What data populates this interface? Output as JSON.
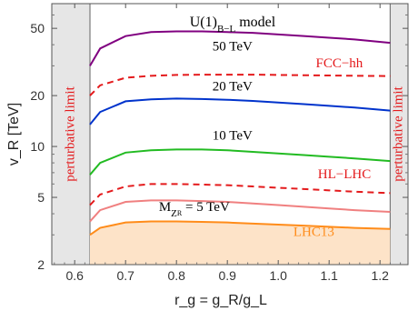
{
  "chart_data": {
    "type": "line",
    "title": "U(1)B−L model",
    "title_main": "U(1)",
    "title_sub": "B−L",
    "title_rest": " model",
    "xlabel": "r_g = g_R/g_L",
    "ylabel": "v_R [TeV]",
    "xlim": [
      0.555,
      1.255
    ],
    "ylim": [
      2,
      70
    ],
    "yscale": "log",
    "xticks": [
      "0.6",
      "0.7",
      "0.8",
      "0.9",
      "1.0",
      "1.1",
      "1.2"
    ],
    "yticks": [
      "2",
      "5",
      "10",
      "20",
      "50"
    ],
    "excluded_regions": [
      {
        "from": 0.555,
        "to": 0.63,
        "label": "perturbative limit"
      },
      {
        "from": 1.22,
        "to": 1.255,
        "label": "perturbative limit"
      }
    ],
    "series": [
      {
        "name": "50 TeV",
        "color": "#800080",
        "style": "solid",
        "x": [
          0.63,
          0.65,
          0.7,
          0.75,
          0.8,
          0.85,
          0.9,
          0.95,
          1.0,
          1.05,
          1.1,
          1.15,
          1.22
        ],
        "y": [
          30,
          38,
          45,
          47.5,
          48,
          48,
          47.5,
          47,
          46,
          45,
          44,
          43,
          41
        ]
      },
      {
        "name": "FCC−hh",
        "color": "#e41a1c",
        "style": "dashed",
        "x": [
          0.63,
          0.65,
          0.7,
          0.75,
          0.8,
          0.85,
          0.9,
          0.95,
          1.0,
          1.05,
          1.1,
          1.15,
          1.22
        ],
        "y": [
          20,
          23,
          25.5,
          26.2,
          26.5,
          26.6,
          26.6,
          26.6,
          26.5,
          26.4,
          26.3,
          26.2,
          26.1
        ]
      },
      {
        "name": "20 TeV",
        "color": "#0033cc",
        "style": "solid",
        "x": [
          0.63,
          0.65,
          0.7,
          0.75,
          0.8,
          0.85,
          0.9,
          0.95,
          1.0,
          1.05,
          1.1,
          1.15,
          1.22
        ],
        "y": [
          13.5,
          16,
          18.5,
          19,
          19.2,
          19.1,
          18.9,
          18.6,
          18.2,
          17.8,
          17.4,
          17,
          16.3
        ]
      },
      {
        "name": "10 TeV",
        "color": "#22bb22",
        "style": "solid",
        "x": [
          0.63,
          0.65,
          0.7,
          0.75,
          0.8,
          0.85,
          0.9,
          0.95,
          1.0,
          1.05,
          1.1,
          1.15,
          1.22
        ],
        "y": [
          6.8,
          8,
          9.2,
          9.5,
          9.6,
          9.6,
          9.5,
          9.3,
          9.1,
          8.9,
          8.7,
          8.5,
          8.2
        ]
      },
      {
        "name": "HL−LHC",
        "color": "#e41a1c",
        "style": "dashed",
        "x": [
          0.63,
          0.65,
          0.7,
          0.75,
          0.8,
          0.85,
          0.9,
          0.95,
          1.0,
          1.05,
          1.1,
          1.15,
          1.22
        ],
        "y": [
          4.5,
          5.2,
          5.8,
          6.0,
          6.0,
          5.95,
          5.9,
          5.8,
          5.7,
          5.6,
          5.5,
          5.4,
          5.3
        ]
      },
      {
        "name": "5 TeV",
        "color": "#f08080",
        "style": "solid",
        "x": [
          0.63,
          0.65,
          0.7,
          0.75,
          0.8,
          0.85,
          0.9,
          0.95,
          1.0,
          1.05,
          1.1,
          1.15,
          1.22
        ],
        "y": [
          3.6,
          4.2,
          4.7,
          4.8,
          4.8,
          4.75,
          4.7,
          4.6,
          4.5,
          4.4,
          4.3,
          4.2,
          4.1
        ]
      },
      {
        "name": "LHC13",
        "color": "#ff8c1a",
        "style": "solid",
        "fill": "#fde3c8",
        "x": [
          0.63,
          0.65,
          0.7,
          0.75,
          0.8,
          0.85,
          0.9,
          0.95,
          1.0,
          1.05,
          1.1,
          1.15,
          1.22
        ],
        "y": [
          3.0,
          3.3,
          3.55,
          3.6,
          3.6,
          3.58,
          3.55,
          3.5,
          3.45,
          3.4,
          3.35,
          3.3,
          3.25
        ]
      }
    ],
    "annotations": [
      {
        "id": "ann-50",
        "text": "50 TeV",
        "x": 0.91,
        "y": 37,
        "color": "black"
      },
      {
        "id": "ann-fcc",
        "text": "FCC−hh",
        "x": 1.12,
        "y": 29.5,
        "color": "red"
      },
      {
        "id": "ann-20",
        "text": "20 TeV",
        "x": 0.91,
        "y": 21.5,
        "color": "black"
      },
      {
        "id": "ann-10",
        "text": "10 TeV",
        "x": 0.91,
        "y": 11,
        "color": "black"
      },
      {
        "id": "ann-hl",
        "text": "HL−LHC",
        "x": 1.13,
        "y": 6.5,
        "color": "red"
      },
      {
        "id": "ann-lhc13",
        "text": "LHC13",
        "x": 1.07,
        "y": 2.95,
        "color": "orange"
      }
    ],
    "mz_annotation": {
      "main": "M",
      "sub1": "Z",
      "sub2": "R",
      "rest": " = 5 TeV",
      "x": 0.835,
      "y": 4.15
    }
  }
}
